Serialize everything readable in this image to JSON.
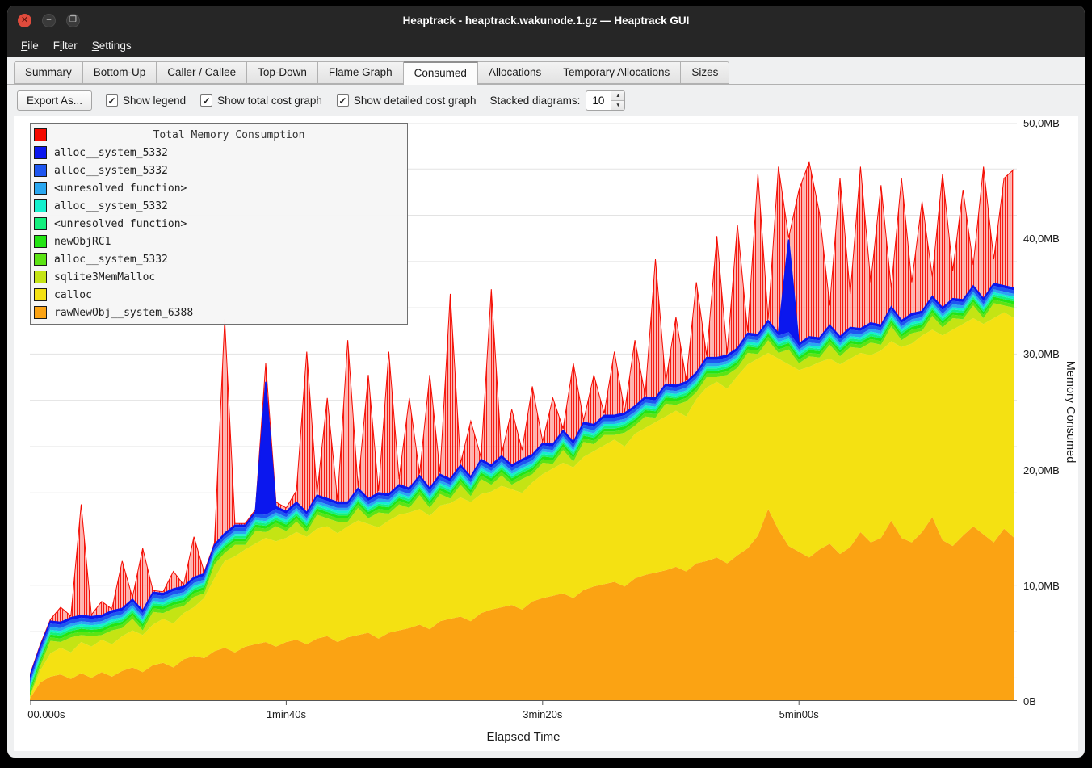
{
  "window": {
    "title": "Heaptrack - heaptrack.wakunode.1.gz — Heaptrack GUI",
    "controls": {
      "close": "✕",
      "minimize": "–",
      "maximize": "❐"
    }
  },
  "menubar": {
    "items": [
      {
        "label": "File",
        "mnemonic_index": 0
      },
      {
        "label": "Filter",
        "mnemonic_index": 1
      },
      {
        "label": "Settings",
        "mnemonic_index": 0
      }
    ]
  },
  "tabs": {
    "active": "Consumed",
    "items": [
      "Summary",
      "Bottom-Up",
      "Caller / Callee",
      "Top-Down",
      "Flame Graph",
      "Consumed",
      "Allocations",
      "Temporary Allocations",
      "Sizes"
    ]
  },
  "toolbar": {
    "export_button": "Export As...",
    "checkboxes": [
      {
        "label": "Show legend",
        "checked": true
      },
      {
        "label": "Show total cost graph",
        "checked": true
      },
      {
        "label": "Show detailed cost graph",
        "checked": true
      }
    ],
    "stacked_label": "Stacked diagrams:",
    "stacked_value": "10"
  },
  "legend": {
    "title": "Total Memory Consumption",
    "title_color": "#f40a00",
    "entries": [
      {
        "label": "alloc__system_5332",
        "color": "#0b17ee"
      },
      {
        "label": "alloc__system_5332",
        "color": "#1e56f0"
      },
      {
        "label": "<unresolved function>",
        "color": "#2aa7f0"
      },
      {
        "label": "alloc__system_5332",
        "color": "#14f0cd"
      },
      {
        "label": "<unresolved function>",
        "color": "#14f07e"
      },
      {
        "label": "newObjRC1",
        "color": "#23e414"
      },
      {
        "label": "alloc__system_5332",
        "color": "#5ce314"
      },
      {
        "label": "sqlite3MemMalloc",
        "color": "#c4e414"
      },
      {
        "label": "calloc",
        "color": "#f4e112"
      },
      {
        "label": "rawNewObj__system_6388",
        "color": "#fba313"
      }
    ]
  },
  "chart_data": {
    "type": "area",
    "stacked": true,
    "title": "Total Memory Consumption",
    "xlabel": "Elapsed Time",
    "ylabel": "Memory Consumed",
    "xlim": [
      0,
      385
    ],
    "ylim_mb": [
      0,
      50
    ],
    "grid_interval_mb": 4,
    "x_ticks": [
      {
        "t": 0,
        "label": "00.000s"
      },
      {
        "t": 100,
        "label": "1min40s"
      },
      {
        "t": 200,
        "label": "3min20s"
      },
      {
        "t": 300,
        "label": "5min00s"
      }
    ],
    "y_ticks": [
      {
        "mb": 0,
        "label": "0B"
      },
      {
        "mb": 10,
        "label": "10,0MB"
      },
      {
        "mb": 20,
        "label": "20,0MB"
      },
      {
        "mb": 30,
        "label": "30,0MB"
      },
      {
        "mb": 40,
        "label": "40,0MB"
      },
      {
        "mb": 50,
        "label": "50,0MB"
      }
    ],
    "x_seconds": [
      0,
      4,
      8,
      12,
      16,
      20,
      24,
      28,
      32,
      36,
      40,
      44,
      48,
      52,
      56,
      60,
      64,
      68,
      72,
      76,
      80,
      84,
      88,
      92,
      96,
      100,
      104,
      108,
      112,
      116,
      120,
      124,
      128,
      132,
      136,
      140,
      144,
      148,
      152,
      156,
      160,
      164,
      168,
      172,
      176,
      180,
      184,
      188,
      192,
      196,
      200,
      204,
      208,
      212,
      216,
      220,
      224,
      228,
      232,
      236,
      240,
      244,
      248,
      252,
      256,
      260,
      264,
      268,
      272,
      276,
      280,
      284,
      288,
      292,
      296,
      300,
      304,
      308,
      312,
      316,
      320,
      324,
      328,
      332,
      336,
      340,
      344,
      348,
      352,
      356,
      360,
      364,
      368,
      372,
      376,
      380,
      384
    ],
    "series": [
      {
        "name": "rawNewObj__system_6388",
        "color": "#fba313",
        "values": [
          0.2,
          1.6,
          2.1,
          2.3,
          1.9,
          2.4,
          2.0,
          2.5,
          2.1,
          2.6,
          2.9,
          2.5,
          3.1,
          3.3,
          2.9,
          3.6,
          3.9,
          3.7,
          4.3,
          4.6,
          4.2,
          4.7,
          4.9,
          5.1,
          4.7,
          5.1,
          5.3,
          4.9,
          5.4,
          5.6,
          5.1,
          5.5,
          5.7,
          5.9,
          5.4,
          5.9,
          6.1,
          6.3,
          6.6,
          6.2,
          6.9,
          7.1,
          7.3,
          6.9,
          7.6,
          7.9,
          8.1,
          8.3,
          7.9,
          8.6,
          8.9,
          9.1,
          9.3,
          8.9,
          9.6,
          9.9,
          10.1,
          10.3,
          9.9,
          10.6,
          10.9,
          11.1,
          11.3,
          11.6,
          11.2,
          11.9,
          12.1,
          12.4,
          11.9,
          12.6,
          13.2,
          14.3,
          16.6,
          14.8,
          13.4,
          12.9,
          12.4,
          13.1,
          13.6,
          12.7,
          13.3,
          14.6,
          13.7,
          14.1,
          15.6,
          14.1,
          13.7,
          14.6,
          15.9,
          13.9,
          13.4,
          14.3,
          15.1,
          14.4,
          13.7,
          14.9,
          14.1
        ]
      },
      {
        "name": "calloc",
        "color": "#f4e112",
        "values": [
          0.1,
          1.0,
          2.0,
          2.3,
          2.3,
          2.7,
          2.7,
          2.8,
          2.8,
          3.0,
          3.2,
          3.2,
          3.5,
          3.8,
          3.8,
          4.0,
          4.2,
          5.2,
          6.3,
          7.5,
          8.3,
          8.4,
          8.7,
          9.0,
          9.1,
          9.0,
          9.3,
          9.3,
          9.5,
          9.5,
          9.4,
          9.6,
          9.9,
          9.4,
          9.6,
          9.7,
          10.0,
          10.0,
          10.0,
          9.8,
          10.0,
          10.0,
          10.3,
          10.3,
          10.3,
          10.2,
          10.5,
          10.0,
          10.1,
          10.3,
          10.7,
          11.0,
          11.3,
          11.3,
          11.5,
          11.7,
          12.0,
          12.3,
          12.1,
          12.5,
          12.7,
          13.0,
          13.3,
          13.5,
          13.4,
          14.2,
          15.0,
          15.2,
          15.1,
          15.5,
          15.9,
          15.3,
          13.5,
          14.8,
          15.7,
          15.7,
          16.5,
          16.2,
          16.0,
          16.4,
          16.3,
          15.5,
          16.2,
          16.2,
          15.5,
          16.5,
          17.2,
          17.0,
          16.2,
          17.7,
          18.7,
          18.3,
          18.0,
          18.2,
          19.4,
          18.7,
          19.0
        ]
      },
      {
        "name": "sqlite3MemMalloc",
        "color": "#c4e414",
        "values": [
          0.1,
          0.4,
          1.1,
          0.5,
          1.3,
          0.6,
          0.9,
          0.4,
          1.2,
          0.7,
          1.0,
          0.4,
          1.1,
          0.5,
          1.3,
          0.6,
          0.9,
          0.4,
          1.2,
          0.7,
          1.0,
          0.4,
          1.1,
          0.5,
          1.3,
          0.6,
          0.9,
          0.4,
          1.2,
          0.7,
          1.0,
          0.4,
          1.1,
          0.5,
          1.3,
          0.6,
          0.9,
          0.4,
          1.2,
          0.7,
          1.0,
          0.4,
          1.1,
          0.5,
          1.3,
          0.6,
          0.9,
          0.4,
          1.2,
          0.7,
          1.0,
          0.4,
          1.1,
          0.5,
          1.3,
          0.6,
          0.9,
          0.4,
          1.2,
          0.7,
          1.0,
          0.4,
          1.1,
          0.5,
          1.3,
          0.6,
          0.9,
          0.4,
          1.2,
          0.7,
          1.0,
          0.4,
          1.1,
          0.5,
          1.3,
          0.6,
          0.9,
          0.4,
          1.2,
          0.7,
          1.0,
          0.4,
          1.1,
          0.5,
          1.3,
          0.6,
          0.9,
          0.4,
          1.2,
          0.7,
          1.0,
          0.4,
          1.1,
          0.5,
          1.3,
          0.6,
          0.9
        ]
      },
      {
        "name": "alloc__system_5332",
        "color": "#5ce314",
        "values": 0.3
      },
      {
        "name": "newObjRC1",
        "color": "#23e414",
        "values": 0.25
      },
      {
        "name": "<unresolved function>",
        "color": "#14f07e",
        "values": 0.2
      },
      {
        "name": "alloc__system_5332",
        "color": "#14f0cd",
        "values": 0.2
      },
      {
        "name": "<unresolved function>",
        "color": "#2aa7f0",
        "values": 0.25
      },
      {
        "name": "alloc__system_5332",
        "color": "#1e56f0",
        "values": 0.3
      },
      {
        "name": "alloc__system_5332",
        "color": "#0b17ee",
        "values": [
          0.2,
          0.2,
          0.2,
          0.2,
          0.2,
          0.2,
          0.2,
          0.2,
          0.2,
          0.2,
          0.2,
          0.2,
          0.2,
          0.2,
          0.2,
          0.2,
          0.2,
          0.2,
          0.2,
          0.2,
          0.2,
          0.2,
          0.2,
          11.5,
          0.2,
          0.2,
          0.2,
          0.2,
          0.2,
          0.2,
          0.2,
          0.2,
          0.2,
          0.2,
          0.2,
          0.2,
          0.2,
          0.2,
          0.2,
          0.2,
          0.2,
          0.2,
          0.2,
          0.2,
          0.2,
          0.2,
          0.2,
          0.2,
          0.2,
          0.2,
          0.2,
          0.2,
          0.2,
          0.2,
          0.2,
          0.2,
          0.2,
          0.2,
          0.2,
          0.2,
          0.2,
          0.2,
          0.2,
          0.2,
          0.2,
          0.2,
          0.2,
          0.2,
          0.2,
          0.2,
          0.2,
          0.2,
          0.2,
          0.2,
          8.0,
          0.2,
          0.2,
          0.2,
          0.2,
          0.2,
          0.2,
          0.2,
          0.2,
          0.2,
          0.2,
          0.2,
          0.2,
          0.2,
          0.2,
          0.2,
          0.2,
          0.2,
          0.2,
          0.2,
          0.2,
          0.2,
          0.2
        ]
      }
    ],
    "total": {
      "name": "Total Memory Consumption",
      "color": "#f40a00",
      "values": [
        0.6,
        4.2,
        6.6,
        8.1,
        6.2,
        17.0,
        7.2,
        8.6,
        6.7,
        12.1,
        8.2,
        13.2,
        9.1,
        8.2,
        11.2,
        9.7,
        14.2,
        10.7,
        12.2,
        33.0,
        15.2,
        14.7,
        16.2,
        29.2,
        17.2,
        16.7,
        18.2,
        30.2,
        17.7,
        26.2,
        17.2,
        31.2,
        18.2,
        28.2,
        17.7,
        30.2,
        19.2,
        26.2,
        18.7,
        28.2,
        19.2,
        35.2,
        20.2,
        24.2,
        20.7,
        35.6,
        21.2,
        25.2,
        21.7,
        27.2,
        22.2,
        26.2,
        23.2,
        29.2,
        23.7,
        28.2,
        24.2,
        30.2,
        24.7,
        31.2,
        25.2,
        38.2,
        26.2,
        33.2,
        26.7,
        36.2,
        28.2,
        40.2,
        29.2,
        41.2,
        30.7,
        45.6,
        32.2,
        46.2,
        40.0,
        44.2,
        46.6,
        42.2,
        34.2,
        45.2,
        35.2,
        46.2,
        36.2,
        44.6,
        35.7,
        45.2,
        36.2,
        43.2,
        36.7,
        45.6,
        37.2,
        44.2,
        37.7,
        46.2,
        38.2,
        45.2,
        46.0
      ]
    }
  }
}
